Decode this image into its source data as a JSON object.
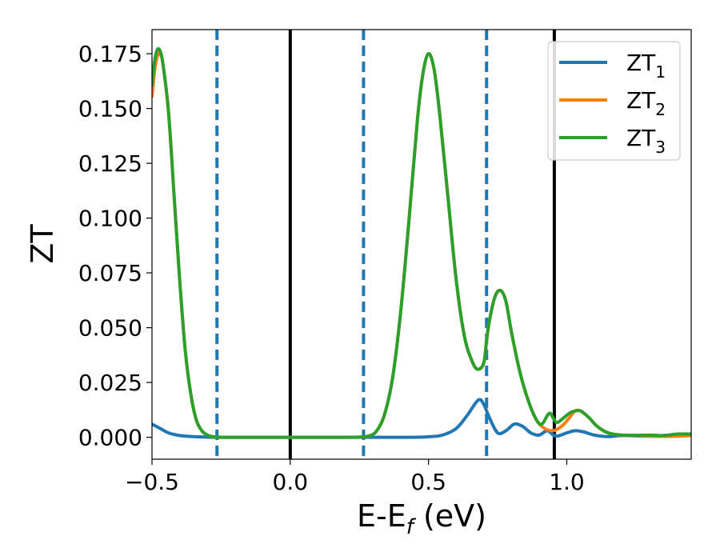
{
  "chart_data": {
    "type": "line",
    "xlabel": "E-E",
    "xlabel_sub": "f",
    "xlabel_unit": " (eV)",
    "ylabel": "ZT",
    "xlim": [
      -0.5,
      1.45
    ],
    "ylim": [
      -0.01,
      0.186
    ],
    "xticks": [
      -0.5,
      0.0,
      0.5,
      1.0
    ],
    "xtick_labels": [
      "−0.5",
      "0.0",
      "0.5",
      "1.0"
    ],
    "yticks": [
      0.0,
      0.025,
      0.05,
      0.075,
      0.1,
      0.125,
      0.15,
      0.175
    ],
    "ytick_labels": [
      "0.000",
      "0.025",
      "0.050",
      "0.075",
      "0.100",
      "0.125",
      "0.150",
      "0.175"
    ],
    "grid": false,
    "legend_position": "top-right",
    "vlines_solid": [
      0.0,
      0.955
    ],
    "vlines_dashed": [
      -0.265,
      0.265,
      0.71
    ],
    "series": [
      {
        "name": "ZT",
        "name_sub": "1",
        "color": "#1f77b4",
        "x": [
          -0.5,
          -0.47,
          -0.44,
          -0.4,
          -0.35,
          -0.3,
          -0.25,
          0.0,
          0.3,
          0.4,
          0.45,
          0.5,
          0.55,
          0.6,
          0.64,
          0.68,
          0.7,
          0.72,
          0.75,
          0.78,
          0.81,
          0.84,
          0.87,
          0.9,
          0.93,
          0.96,
          1.0,
          1.03,
          1.06,
          1.1,
          1.15,
          1.2,
          1.3,
          1.4,
          1.45
        ],
        "y": [
          0.006,
          0.004,
          0.002,
          0.0008,
          0.0003,
          0.0001,
          0.0,
          0.0,
          0.0,
          0.0,
          0.0,
          0.0002,
          0.001,
          0.004,
          0.01,
          0.017,
          0.015,
          0.009,
          0.002,
          0.003,
          0.006,
          0.005,
          0.002,
          0.001,
          0.003,
          0.0005,
          0.002,
          0.003,
          0.0025,
          0.001,
          0.0003,
          0.0008,
          0.0005,
          0.0012,
          0.001
        ]
      },
      {
        "name": "ZT",
        "name_sub": "2",
        "color": "#ff7f0e",
        "x": [
          -0.5,
          -0.49,
          -0.48,
          -0.47,
          -0.46,
          -0.44,
          -0.42,
          -0.4,
          -0.38,
          -0.36,
          -0.34,
          -0.32,
          -0.3,
          -0.28,
          -0.25,
          -0.2,
          0.0,
          0.2,
          0.25,
          0.28,
          0.31,
          0.34,
          0.37,
          0.4,
          0.43,
          0.46,
          0.48,
          0.5,
          0.52,
          0.54,
          0.57,
          0.6,
          0.63,
          0.66,
          0.68,
          0.7,
          0.71,
          0.72,
          0.74,
          0.76,
          0.78,
          0.8,
          0.83,
          0.86,
          0.89,
          0.92,
          0.95,
          0.97,
          0.99,
          1.01,
          1.03,
          1.05,
          1.08,
          1.11,
          1.15,
          1.2,
          1.25,
          1.3,
          1.35,
          1.4,
          1.45
        ],
        "y": [
          0.155,
          0.168,
          0.174,
          0.175,
          0.17,
          0.148,
          0.11,
          0.072,
          0.04,
          0.02,
          0.008,
          0.003,
          0.001,
          0.0003,
          0.0,
          0.0,
          0.0,
          0.0,
          0.0001,
          0.0005,
          0.0025,
          0.01,
          0.027,
          0.058,
          0.1,
          0.145,
          0.166,
          0.175,
          0.168,
          0.148,
          0.11,
          0.072,
          0.046,
          0.034,
          0.031,
          0.034,
          0.044,
          0.053,
          0.064,
          0.067,
          0.062,
          0.048,
          0.03,
          0.017,
          0.008,
          0.004,
          0.003,
          0.004,
          0.006,
          0.009,
          0.012,
          0.012,
          0.009,
          0.005,
          0.002,
          0.001,
          0.0008,
          0.0005,
          0.0004,
          0.0005,
          0.0008
        ]
      },
      {
        "name": "ZT",
        "name_sub": "3",
        "color": "#2ca02c",
        "x": [
          -0.5,
          -0.49,
          -0.48,
          -0.47,
          -0.46,
          -0.44,
          -0.42,
          -0.4,
          -0.38,
          -0.36,
          -0.34,
          -0.32,
          -0.3,
          -0.28,
          -0.25,
          -0.2,
          0.0,
          0.2,
          0.25,
          0.28,
          0.31,
          0.34,
          0.37,
          0.4,
          0.43,
          0.46,
          0.48,
          0.5,
          0.52,
          0.54,
          0.57,
          0.6,
          0.63,
          0.66,
          0.68,
          0.7,
          0.71,
          0.72,
          0.74,
          0.76,
          0.78,
          0.8,
          0.83,
          0.86,
          0.89,
          0.91,
          0.93,
          0.94,
          0.95,
          0.96,
          0.97,
          0.99,
          1.01,
          1.03,
          1.05,
          1.08,
          1.11,
          1.15,
          1.2,
          1.25,
          1.3,
          1.35,
          1.4,
          1.45
        ],
        "y": [
          0.16,
          0.172,
          0.177,
          0.176,
          0.17,
          0.148,
          0.11,
          0.072,
          0.04,
          0.02,
          0.008,
          0.003,
          0.001,
          0.0003,
          0.0,
          0.0,
          0.0,
          0.0,
          0.0001,
          0.0005,
          0.0025,
          0.01,
          0.027,
          0.058,
          0.1,
          0.145,
          0.166,
          0.175,
          0.168,
          0.148,
          0.11,
          0.072,
          0.046,
          0.034,
          0.031,
          0.034,
          0.044,
          0.053,
          0.064,
          0.067,
          0.062,
          0.048,
          0.03,
          0.017,
          0.008,
          0.006,
          0.01,
          0.011,
          0.009,
          0.007,
          0.007,
          0.009,
          0.011,
          0.012,
          0.012,
          0.009,
          0.005,
          0.002,
          0.001,
          0.0009,
          0.001,
          0.0008,
          0.0015,
          0.0015
        ]
      }
    ]
  }
}
